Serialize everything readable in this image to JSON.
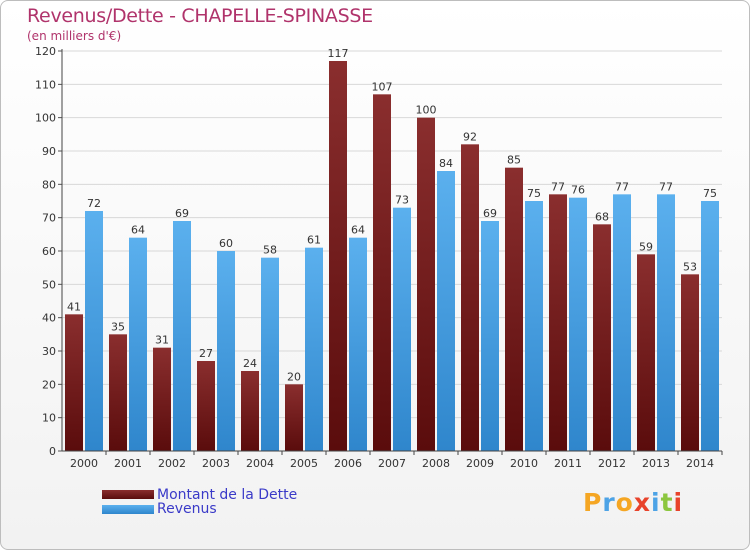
{
  "title": "Revenus/Dette - CHAPELLE-SPINASSE",
  "subtitle": "(en milliers d'€)",
  "legend": {
    "debt_label": "Montant de la Dette",
    "revenue_label": "Revenus"
  },
  "logo_text": "Proxiti",
  "colors": {
    "debt": "#7b1c1c",
    "revenue": "#4da3e6",
    "title": "#b0336b",
    "legend_text": "#3a3ac8"
  },
  "chart_data": {
    "type": "bar",
    "title": "Revenus/Dette - CHAPELLE-SPINASSE",
    "ylabel": "(en milliers d'€)",
    "xlabel": "",
    "ylim": [
      0,
      120
    ],
    "yticks": [
      0,
      10,
      20,
      30,
      40,
      50,
      60,
      70,
      80,
      90,
      100,
      110,
      120
    ],
    "categories": [
      "2000",
      "2001",
      "2002",
      "2003",
      "2004",
      "2005",
      "2006",
      "2007",
      "2008",
      "2009",
      "2010",
      "2011",
      "2012",
      "2013",
      "2014"
    ],
    "series": [
      {
        "name": "Montant de la Dette",
        "values": [
          41,
          35,
          31,
          27,
          24,
          20,
          117,
          107,
          100,
          92,
          85,
          77,
          68,
          59,
          53
        ]
      },
      {
        "name": "Revenus",
        "values": [
          72,
          64,
          69,
          60,
          58,
          61,
          64,
          73,
          84,
          69,
          75,
          76,
          77,
          77,
          75
        ]
      }
    ],
    "grid": true,
    "legend_position": "bottom-left"
  }
}
